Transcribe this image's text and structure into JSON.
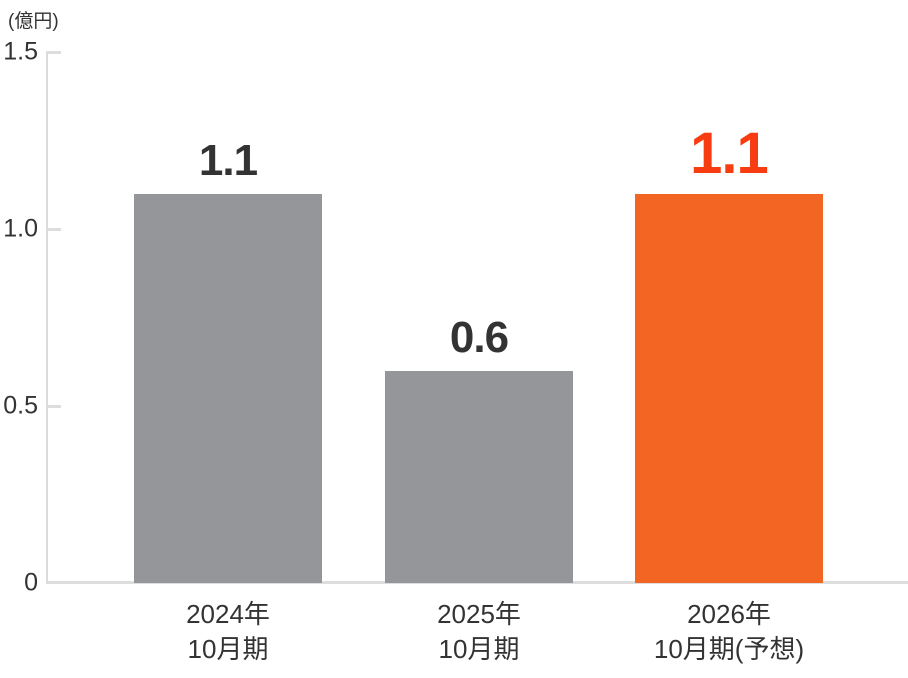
{
  "chart_data": {
    "type": "bar",
    "title": "",
    "unit_label": "(億円)",
    "xlabel": "",
    "ylabel": "(億円)",
    "ylim": [
      0,
      1.5
    ],
    "grid": false,
    "legend_position": "none",
    "categories": [
      "2024年 10月期",
      "2025年 10月期",
      "2026年 10月期(予想)"
    ],
    "values": [
      1.1,
      0.6,
      1.1
    ],
    "yticks": [
      {
        "value": 1.5,
        "label": "1.5"
      },
      {
        "value": 1.0,
        "label": "1.0"
      },
      {
        "value": 0.5,
        "label": "0.5"
      },
      {
        "value": 0,
        "label": "0"
      }
    ],
    "bars": [
      {
        "category_line1": "2024年",
        "category_line2": "10月期",
        "value": 1.1,
        "value_label": "1.1",
        "color": "#95969a",
        "label_color": "#333333",
        "emphasis": false
      },
      {
        "category_line1": "2025年",
        "category_line2": "10月期",
        "value": 0.6,
        "value_label": "0.6",
        "color": "#95969a",
        "label_color": "#333333",
        "emphasis": false
      },
      {
        "category_line1": "2026年",
        "category_line2": "10月期(予想)",
        "value": 1.1,
        "value_label": "1.1",
        "color": "#f26522",
        "label_color": "#f63c10",
        "emphasis": true
      }
    ]
  },
  "colors": {
    "background": "#ffffff",
    "axis_line": "#dddddd",
    "text": "#333333",
    "bar_default": "#95969a",
    "bar_emphasis": "#f26522",
    "value_label_emphasis": "#f63c10"
  }
}
